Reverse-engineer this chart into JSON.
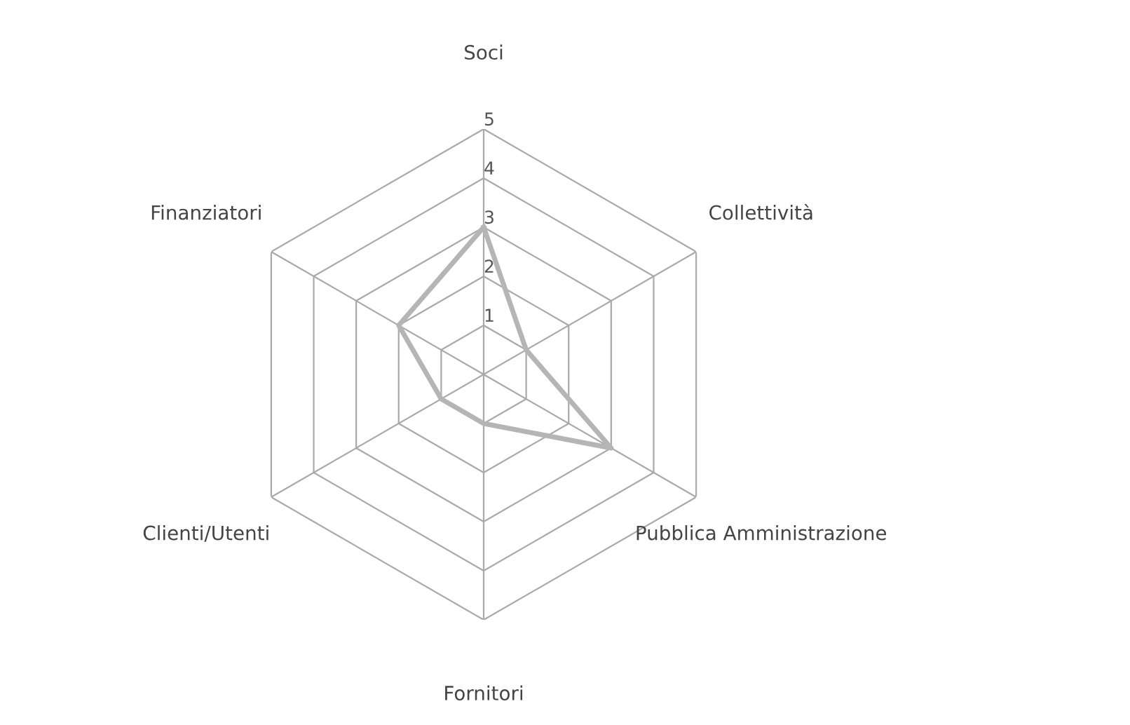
{
  "chart_data": {
    "type": "radar",
    "categories": [
      "Soci",
      "Collettività",
      "Pubblica Amministrazione",
      "Fornitori",
      "Clienti/Utenti",
      "Finanziatori"
    ],
    "series": [
      {
        "color": "#b5b5b5",
        "values": [
          3,
          1,
          3,
          1,
          1,
          2
        ]
      }
    ],
    "ylim": [
      0,
      5
    ],
    "yticks": [
      1,
      2,
      3,
      4,
      5
    ],
    "grid": true,
    "marker": "none",
    "line_style": "solid"
  }
}
